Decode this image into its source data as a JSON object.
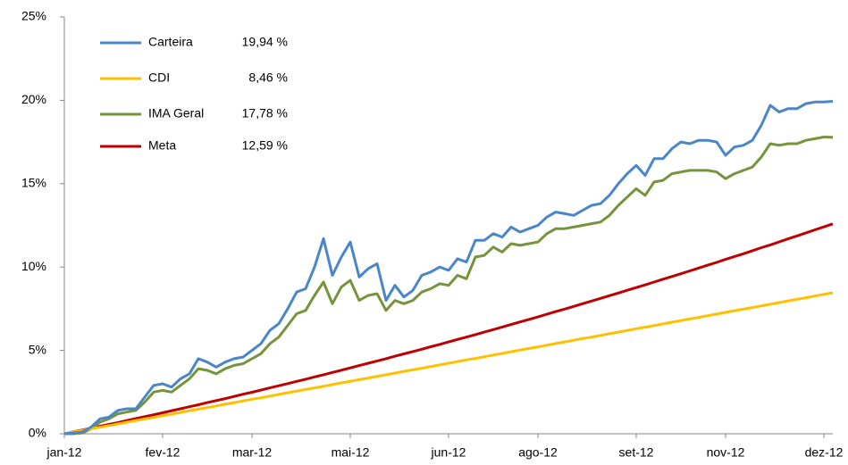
{
  "chart_data": {
    "type": "line",
    "categories": [
      "jan-12",
      null,
      null,
      null,
      null,
      null,
      null,
      null,
      null,
      null,
      null,
      "fev-12",
      null,
      null,
      null,
      null,
      null,
      null,
      null,
      null,
      null,
      "mar-12",
      null,
      null,
      null,
      null,
      null,
      null,
      null,
      null,
      null,
      null,
      "mai-12",
      null,
      null,
      null,
      null,
      null,
      null,
      null,
      null,
      null,
      null,
      "jun-12",
      null,
      null,
      null,
      null,
      null,
      null,
      null,
      null,
      null,
      "ago-12",
      null,
      null,
      null,
      null,
      null,
      null,
      null,
      null,
      null,
      null,
      "set-12",
      null,
      null,
      null,
      null,
      null,
      null,
      null,
      null,
      null,
      "nov-12",
      null,
      null,
      null,
      null,
      null,
      null,
      null,
      null,
      null,
      null,
      "dez-12",
      null
    ],
    "ylim": [
      0,
      25
    ],
    "yticks": [
      {
        "value": 0,
        "label": "0%"
      },
      {
        "value": 5,
        "label": "5%"
      },
      {
        "value": 10,
        "label": "10%"
      },
      {
        "value": 15,
        "label": "15%"
      },
      {
        "value": 20,
        "label": "20%"
      },
      {
        "value": 25,
        "label": "25%"
      }
    ],
    "grid": false,
    "legend": "upper left",
    "series": [
      {
        "name": "Carteira",
        "legend_value": "19,94 %",
        "color": "#4a86c8",
        "values": [
          0,
          0.05,
          0.1,
          0.4,
          0.9,
          1.0,
          1.4,
          1.5,
          1.5,
          2.2,
          2.9,
          3.0,
          2.8,
          3.3,
          3.6,
          4.5,
          4.3,
          4.0,
          4.3,
          4.5,
          4.6,
          5.0,
          5.4,
          6.2,
          6.6,
          7.5,
          8.5,
          8.7,
          10.0,
          11.7,
          9.5,
          10.6,
          11.5,
          9.4,
          9.9,
          10.2,
          8.0,
          8.9,
          8.2,
          8.6,
          9.5,
          9.7,
          10.0,
          9.8,
          10.5,
          10.3,
          11.6,
          11.6,
          12.0,
          11.8,
          12.4,
          12.1,
          12.3,
          12.5,
          13.0,
          13.3,
          13.2,
          13.1,
          13.4,
          13.7,
          13.8,
          14.3,
          15.0,
          15.6,
          16.1,
          15.5,
          16.5,
          16.5,
          17.1,
          17.5,
          17.4,
          17.6,
          17.6,
          17.5,
          16.7,
          17.2,
          17.3,
          17.6,
          18.5,
          19.7,
          19.3,
          19.5,
          19.5,
          19.8,
          19.9,
          19.9,
          19.94
        ]
      },
      {
        "name": "CDI",
        "legend_value": "8,46 %",
        "color": "#ffc000",
        "values": [
          0,
          0.1,
          0.2,
          0.3,
          0.39,
          0.49,
          0.59,
          0.69,
          0.79,
          0.89,
          0.98,
          1.08,
          1.18,
          1.28,
          1.38,
          1.48,
          1.57,
          1.67,
          1.77,
          1.87,
          1.97,
          2.07,
          2.16,
          2.26,
          2.36,
          2.46,
          2.56,
          2.66,
          2.75,
          2.85,
          2.95,
          3.05,
          3.15,
          3.25,
          3.34,
          3.44,
          3.54,
          3.64,
          3.74,
          3.84,
          3.93,
          4.03,
          4.13,
          4.23,
          4.33,
          4.43,
          4.52,
          4.62,
          4.72,
          4.82,
          4.92,
          5.02,
          5.12,
          5.21,
          5.31,
          5.41,
          5.51,
          5.61,
          5.71,
          5.8,
          5.9,
          6.0,
          6.1,
          6.2,
          6.3,
          6.39,
          6.49,
          6.59,
          6.69,
          6.79,
          6.89,
          6.98,
          7.08,
          7.18,
          7.28,
          7.38,
          7.48,
          7.57,
          7.67,
          7.77,
          7.87,
          7.97,
          8.07,
          8.16,
          8.26,
          8.36,
          8.46
        ]
      },
      {
        "name": "IMA Geral",
        "legend_value": "17,78 %",
        "color": "#77933c",
        "values": [
          0,
          0,
          0.05,
          0.3,
          0.7,
          0.9,
          1.2,
          1.3,
          1.4,
          1.9,
          2.5,
          2.6,
          2.5,
          2.9,
          3.3,
          3.9,
          3.8,
          3.6,
          3.9,
          4.1,
          4.2,
          4.5,
          4.8,
          5.4,
          5.8,
          6.5,
          7.2,
          7.4,
          8.3,
          9.1,
          7.8,
          8.8,
          9.2,
          8.0,
          8.3,
          8.4,
          7.4,
          8.0,
          7.8,
          8.0,
          8.5,
          8.7,
          9.0,
          8.9,
          9.5,
          9.3,
          10.6,
          10.7,
          11.2,
          10.9,
          11.4,
          11.3,
          11.4,
          11.5,
          12.0,
          12.3,
          12.3,
          12.4,
          12.5,
          12.6,
          12.7,
          13.1,
          13.7,
          14.2,
          14.7,
          14.3,
          15.1,
          15.2,
          15.6,
          15.7,
          15.8,
          15.8,
          15.8,
          15.7,
          15.3,
          15.6,
          15.8,
          16.0,
          16.6,
          17.4,
          17.3,
          17.4,
          17.4,
          17.6,
          17.7,
          17.8,
          17.78
        ]
      },
      {
        "name": "Meta",
        "legend_value": "12,59 %",
        "color": "#c00000",
        "values": [
          0,
          0.11,
          0.22,
          0.33,
          0.45,
          0.56,
          0.67,
          0.79,
          0.91,
          1.02,
          1.14,
          1.26,
          1.38,
          1.5,
          1.62,
          1.74,
          1.87,
          1.99,
          2.11,
          2.24,
          2.37,
          2.49,
          2.62,
          2.75,
          2.88,
          3.01,
          3.14,
          3.27,
          3.41,
          3.54,
          3.68,
          3.81,
          3.95,
          4.09,
          4.23,
          4.37,
          4.5,
          4.65,
          4.79,
          4.93,
          5.07,
          5.22,
          5.36,
          5.51,
          5.66,
          5.8,
          5.95,
          6.1,
          6.25,
          6.4,
          6.55,
          6.71,
          6.86,
          7.01,
          7.17,
          7.33,
          7.48,
          7.64,
          7.8,
          7.96,
          8.12,
          8.28,
          8.44,
          8.61,
          8.77,
          8.93,
          9.1,
          9.27,
          9.43,
          9.6,
          9.77,
          9.94,
          10.11,
          10.28,
          10.46,
          10.63,
          10.8,
          10.98,
          11.16,
          11.33,
          11.51,
          11.69,
          11.87,
          12.05,
          12.23,
          12.41,
          12.59
        ]
      }
    ]
  }
}
